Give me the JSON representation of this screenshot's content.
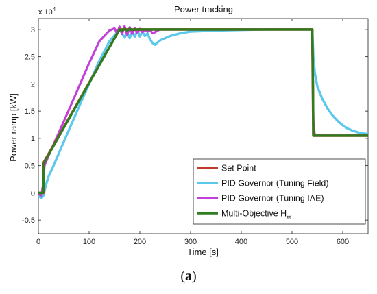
{
  "caption": {
    "open": "(",
    "letter": "a",
    "close": ")"
  },
  "chart_data": {
    "type": "line",
    "title": "Power tracking",
    "xlabel": "Time [s]",
    "ylabel": "Power ramp [kW]",
    "y_multiplier_label": "x 10",
    "y_multiplier_exponent": "4",
    "xlim": [
      0,
      650
    ],
    "ylim": [
      -0.75,
      3.2
    ],
    "x_ticks": [
      0,
      100,
      200,
      300,
      400,
      500,
      600
    ],
    "y_ticks": [
      -0.5,
      0,
      0.5,
      1,
      1.5,
      2,
      2.5,
      3
    ],
    "x_tick_labels": [
      "0",
      "100",
      "200",
      "300",
      "400",
      "500",
      "600"
    ],
    "y_tick_labels": [
      "-0.5",
      "0",
      "0.5",
      "1",
      "1.5",
      "2",
      "2.5",
      "3"
    ],
    "grid": false,
    "legend_position": "bottom-right",
    "series": [
      {
        "name": "Set Point",
        "color": "#c0392b",
        "x": [
          0,
          10,
          10,
          160,
          540,
          542,
          650
        ],
        "y": [
          0,
          0,
          0.55,
          3.0,
          3.0,
          1.05,
          1.05
        ]
      },
      {
        "name": "PID Governor (Tuning Field)",
        "color": "#5bc8ec",
        "x": [
          0,
          6,
          10,
          15,
          20,
          30,
          40,
          60,
          80,
          100,
          120,
          140,
          160,
          170,
          175,
          180,
          185,
          190,
          195,
          200,
          205,
          210,
          215,
          220,
          225,
          230,
          240,
          260,
          280,
          300,
          350,
          400,
          450,
          500,
          540,
          542,
          545,
          550,
          560,
          570,
          580,
          590,
          600,
          610,
          620,
          630,
          640,
          650
        ],
        "y": [
          -0.05,
          -0.1,
          -0.05,
          0.15,
          0.3,
          0.5,
          0.72,
          1.15,
          1.58,
          2.0,
          2.42,
          2.78,
          3.0,
          2.85,
          2.95,
          2.84,
          2.97,
          2.86,
          2.99,
          2.87,
          2.96,
          2.88,
          2.93,
          2.82,
          2.75,
          2.72,
          2.8,
          2.88,
          2.93,
          2.96,
          2.98,
          2.99,
          3.0,
          3.0,
          3.0,
          2.5,
          2.2,
          1.95,
          1.72,
          1.55,
          1.42,
          1.32,
          1.24,
          1.18,
          1.14,
          1.11,
          1.09,
          1.08
        ]
      },
      {
        "name": "PID Governor (Tuning IAE)",
        "color": "#c040d8",
        "x": [
          0,
          6,
          10,
          12,
          20,
          40,
          60,
          80,
          100,
          120,
          140,
          150,
          155,
          160,
          165,
          170,
          175,
          180,
          185,
          190,
          195,
          200,
          205,
          210,
          215,
          220,
          225,
          230,
          235,
          240,
          260,
          300,
          400,
          500,
          540,
          542,
          545,
          650
        ],
        "y": [
          -0.02,
          -0.05,
          0.2,
          0.5,
          0.68,
          1.1,
          1.52,
          1.95,
          2.38,
          2.78,
          2.98,
          3.02,
          2.93,
          3.05,
          2.92,
          3.06,
          2.9,
          3.04,
          2.92,
          3.02,
          2.94,
          3.01,
          2.95,
          3.0,
          2.96,
          2.99,
          2.93,
          2.95,
          2.98,
          3.0,
          3.0,
          3.0,
          3.0,
          3.0,
          3.0,
          1.3,
          1.05,
          1.05
        ]
      },
      {
        "name": "Multi-Objective H",
        "name_subscript": "∞",
        "color": "#2e7d1f",
        "x": [
          0,
          9,
          10,
          11,
          160,
          165,
          170,
          175,
          180,
          185,
          190,
          200,
          540,
          541,
          542,
          650
        ],
        "y": [
          0,
          0,
          0.2,
          0.55,
          3.0,
          2.98,
          3.01,
          2.98,
          3.01,
          2.99,
          3.0,
          3.0,
          3.0,
          2.3,
          1.05,
          1.05
        ]
      }
    ]
  }
}
